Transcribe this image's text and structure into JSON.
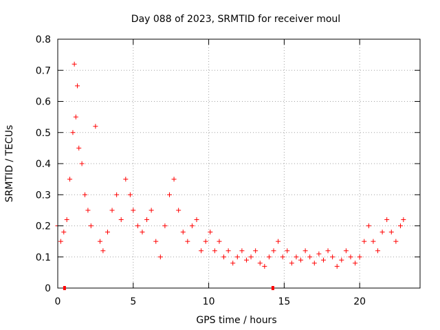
{
  "chart_data": {
    "type": "scatter",
    "title": "Day 088 of 2023, SRMTID for receiver moul",
    "xlabel": "GPS time / hours",
    "ylabel": "SRMTID / TECUs",
    "xlim": [
      0,
      24
    ],
    "ylim": [
      0,
      0.8
    ],
    "x_ticks": [
      0,
      5,
      10,
      15,
      20
    ],
    "x_tick_labels": [
      "0",
      "5",
      "10",
      "15",
      "20"
    ],
    "y_ticks": [
      0,
      0.1,
      0.2,
      0.3,
      0.4,
      0.5,
      0.6,
      0.7,
      0.8
    ],
    "y_tick_labels": [
      "0",
      "0.1",
      "0.2",
      "0.3",
      "0.4",
      "0.5",
      "0.6",
      "0.7",
      "0.8"
    ],
    "grid": true,
    "marker": "+",
    "color": "#ff0000",
    "series": [
      {
        "name": "SRMTID",
        "x": [
          0.0,
          0.2,
          0.4,
          0.6,
          0.8,
          1.0,
          1.1,
          1.2,
          1.3,
          1.4,
          1.6,
          1.8,
          2.0,
          2.2,
          2.5,
          2.8,
          3.0,
          3.3,
          3.6,
          3.9,
          4.2,
          4.5,
          4.8,
          5.0,
          5.3,
          5.6,
          5.9,
          6.2,
          6.5,
          6.8,
          7.1,
          7.4,
          7.7,
          8.0,
          8.3,
          8.6,
          8.9,
          9.2,
          9.5,
          9.8,
          10.1,
          10.4,
          10.7,
          11.0,
          11.3,
          11.6,
          11.9,
          12.2,
          12.5,
          12.8,
          13.1,
          13.4,
          13.7,
          14.0,
          14.3,
          14.6,
          14.9,
          15.2,
          15.5,
          15.8,
          16.1,
          16.4,
          16.7,
          17.0,
          17.3,
          17.6,
          17.9,
          18.2,
          18.5,
          18.8,
          19.1,
          19.4,
          19.7,
          20.0,
          20.3,
          20.6,
          20.9,
          21.2,
          21.5,
          21.8,
          22.1,
          22.4,
          22.7,
          22.9
        ],
        "y": [
          0.2,
          0.15,
          0.18,
          0.22,
          0.35,
          0.5,
          0.72,
          0.55,
          0.65,
          0.45,
          0.4,
          0.3,
          0.25,
          0.2,
          0.52,
          0.15,
          0.12,
          0.18,
          0.25,
          0.3,
          0.22,
          0.35,
          0.3,
          0.25,
          0.2,
          0.18,
          0.22,
          0.25,
          0.15,
          0.1,
          0.2,
          0.3,
          0.35,
          0.25,
          0.18,
          0.15,
          0.2,
          0.22,
          0.12,
          0.15,
          0.18,
          0.12,
          0.15,
          0.1,
          0.12,
          0.08,
          0.1,
          0.12,
          0.09,
          0.1,
          0.12,
          0.08,
          0.07,
          0.1,
          0.12,
          0.15,
          0.1,
          0.12,
          0.08,
          0.1,
          0.09,
          0.12,
          0.1,
          0.08,
          0.11,
          0.09,
          0.12,
          0.1,
          0.07,
          0.09,
          0.12,
          0.1,
          0.08,
          0.1,
          0.15,
          0.2,
          0.15,
          0.12,
          0.18,
          0.22,
          0.18,
          0.15,
          0.2,
          0.22
        ]
      }
    ],
    "axis_markers_x": [
      0.45,
      14.25
    ]
  }
}
